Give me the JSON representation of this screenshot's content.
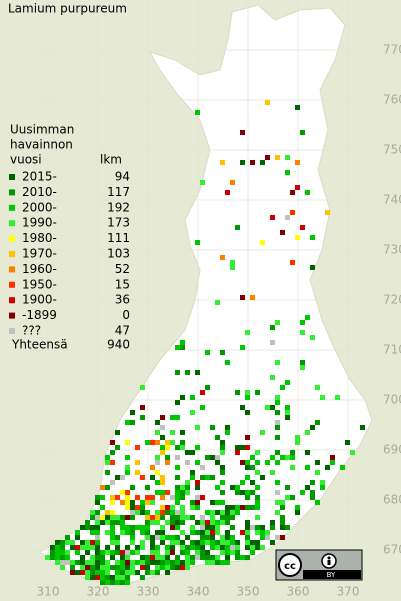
{
  "title": "Lamium purpureum",
  "legend": {
    "heading": [
      "Uusimman",
      "havainnon",
      "vuosi"
    ],
    "count_heading": "lkm",
    "items": [
      {
        "label": "2015-",
        "color": "#006400",
        "count": 94
      },
      {
        "label": "2010-",
        "color": "#009900",
        "count": 117
      },
      {
        "label": "2000-",
        "color": "#00c800",
        "count": 192
      },
      {
        "label": "1990-",
        "color": "#33ee33",
        "count": 173
      },
      {
        "label": "1980-",
        "color": "#ffff00",
        "count": 111
      },
      {
        "label": "1970-",
        "color": "#ffc000",
        "count": 103
      },
      {
        "label": "1960-",
        "color": "#ff8000",
        "count": 52
      },
      {
        "label": "1950-",
        "color": "#ff3000",
        "count": 15
      },
      {
        "label": "1900-",
        "color": "#cc0000",
        "count": 36
      },
      {
        "label": "-1899",
        "color": "#800000",
        "count": 0
      },
      {
        "label": "???",
        "color": "#c0c0c0",
        "count": 47
      }
    ],
    "total_label": "Yhteensä",
    "total": 940
  },
  "axes": {
    "x_ticks": [
      310,
      320,
      330,
      340,
      350,
      360,
      370
    ],
    "y_ticks": [
      670,
      680,
      690,
      700,
      710,
      720,
      730,
      740,
      750,
      760,
      770
    ]
  },
  "license_badge": "BY"
}
